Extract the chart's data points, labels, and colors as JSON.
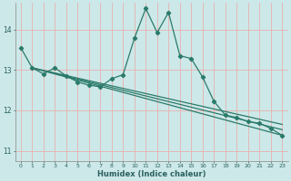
{
  "xlabel": "Humidex (Indice chaleur)",
  "bg_color": "#cde8e8",
  "grid_color": "#e8b0b0",
  "line_color": "#2a7a6a",
  "xlim": [
    -0.5,
    23.5
  ],
  "ylim": [
    10.75,
    14.65
  ],
  "yticks": [
    11,
    12,
    13,
    14
  ],
  "xticks": [
    0,
    1,
    2,
    3,
    4,
    5,
    6,
    7,
    8,
    9,
    10,
    11,
    12,
    13,
    14,
    15,
    16,
    17,
    18,
    19,
    20,
    21,
    22,
    23
  ],
  "main_x": [
    0,
    1,
    2,
    3,
    4,
    5,
    6,
    7,
    8,
    9,
    10,
    11,
    12,
    13,
    14,
    15,
    16,
    17,
    18,
    19,
    20,
    21,
    22,
    23
  ],
  "main_y": [
    13.55,
    13.05,
    12.9,
    13.05,
    12.85,
    12.7,
    12.62,
    12.58,
    12.78,
    12.88,
    13.78,
    14.52,
    13.92,
    14.42,
    13.35,
    13.28,
    12.82,
    12.22,
    11.88,
    11.82,
    11.72,
    11.68,
    11.55,
    11.38
  ],
  "trend1_x": [
    1,
    23
  ],
  "trend1_y": [
    13.05,
    11.38
  ],
  "trend2_x": [
    1,
    23
  ],
  "trend2_y": [
    13.05,
    11.52
  ],
  "trend3_x": [
    1,
    23
  ],
  "trend3_y": [
    13.05,
    11.65
  ],
  "xlabel_color": "#2a6060",
  "tick_color": "#2a6060",
  "spine_color": "#888888"
}
